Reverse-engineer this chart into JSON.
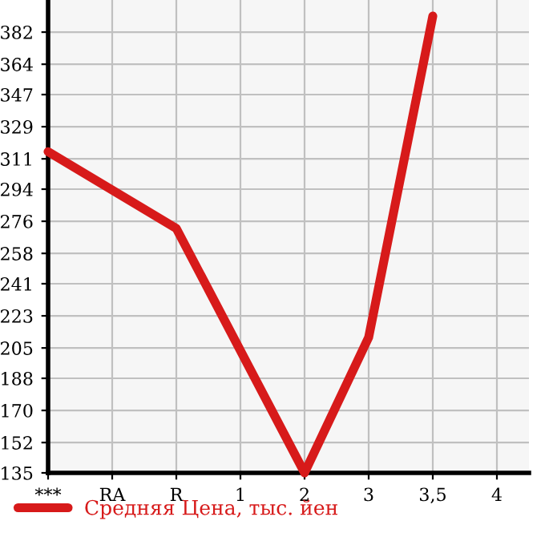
{
  "chart_data": {
    "type": "line",
    "categories": [
      "***",
      "RA",
      "R",
      "1",
      "2",
      "3",
      "3,5",
      "4"
    ],
    "series": [
      {
        "name": "Средняя Цена, тыс. йен",
        "color": "#d71a1a",
        "values": [
          315,
          null,
          272,
          null,
          135,
          211,
          391,
          null
        ]
      }
    ],
    "ylim": [
      135,
      400
    ],
    "yticks": [
      135,
      152,
      170,
      188,
      205,
      223,
      241,
      258,
      276,
      294,
      311,
      329,
      347,
      364,
      382
    ],
    "grid": true,
    "legend": "bottom left",
    "marker": "none",
    "line_style": "solid"
  }
}
